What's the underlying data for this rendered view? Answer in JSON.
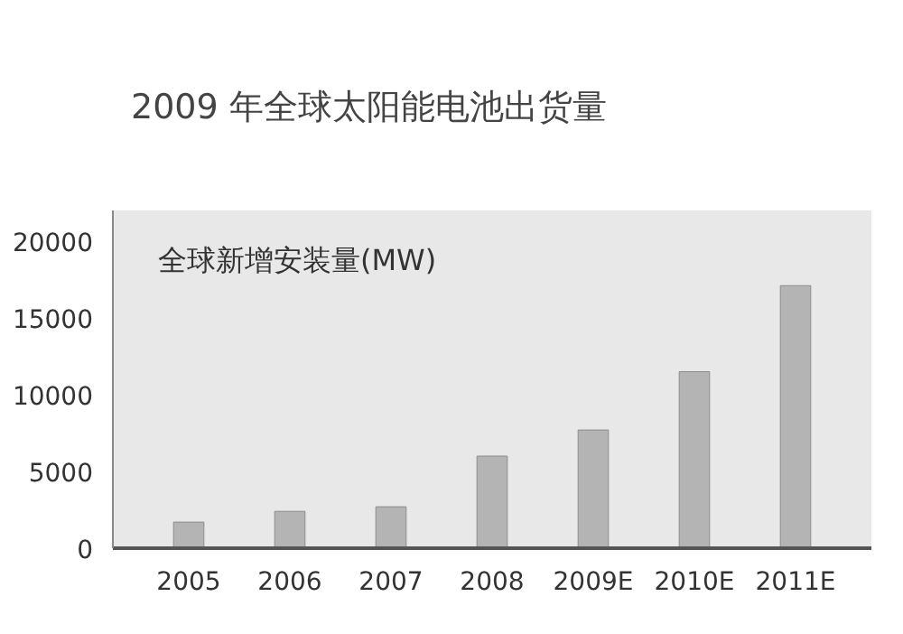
{
  "chart_data": {
    "type": "bar",
    "title": "2009 年全球太阳能电池出货量",
    "categories": [
      "2005",
      "2006",
      "2007",
      "2008",
      "2009E",
      "2010E",
      "2011E"
    ],
    "values": [
      1700,
      2400,
      2700,
      6000,
      7700,
      11500,
      17100
    ],
    "color": "#b4b4b4",
    "ylim": [
      0,
      22000
    ],
    "yticks": [
      0,
      5000,
      10000,
      15000,
      20000
    ],
    "annotations": [
      "全球新增安装量(MW)"
    ]
  }
}
